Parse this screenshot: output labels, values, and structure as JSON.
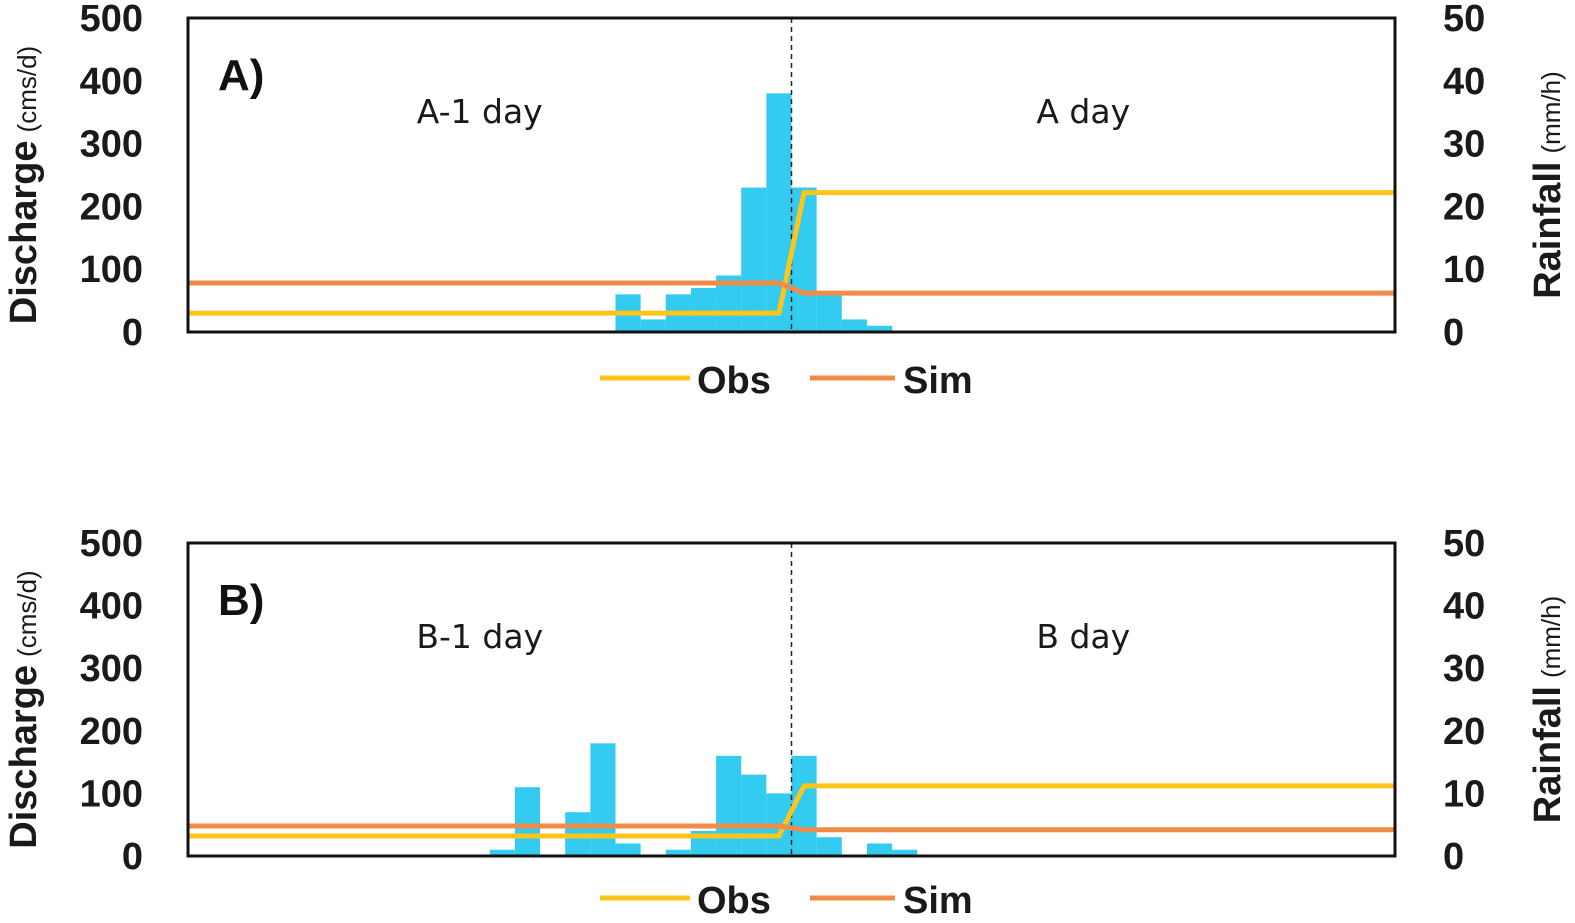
{
  "chart_data": [
    {
      "type": "bar+line",
      "panel_label": "A)",
      "left_axis": {
        "title": "Discharge",
        "unit": "(cms/d)",
        "ylim": [
          0,
          500
        ],
        "ticks": [
          "0",
          "100",
          "200",
          "300",
          "400",
          "500"
        ]
      },
      "right_axis": {
        "title": "Rainfall",
        "unit": "(mm/h)",
        "ylim": [
          0,
          50
        ],
        "ticks": [
          "0",
          "10",
          "20",
          "30",
          "40",
          "50"
        ]
      },
      "x_hours": [
        0,
        48
      ],
      "divider_hour": 24,
      "regions": [
        "A-1 day",
        "A day"
      ],
      "rainfall": {
        "name": "Rainfall",
        "color": "#33ccf0",
        "start_hours": [
          17,
          18,
          19,
          20,
          21,
          22,
          23,
          24,
          25,
          26,
          27
        ],
        "values": [
          6,
          2,
          6,
          7,
          9,
          23,
          38,
          23,
          6,
          2,
          1
        ]
      },
      "series": [
        {
          "name": "Obs",
          "color": "#ffc51a",
          "axis": "left",
          "x": [
            0,
            23.5,
            24.5,
            48
          ],
          "values": [
            30,
            30,
            222,
            222
          ]
        },
        {
          "name": "Sim",
          "color": "#f08c47",
          "axis": "left",
          "x": [
            0,
            23.5,
            24.5,
            48
          ],
          "values": [
            78,
            78,
            62,
            62
          ]
        }
      ],
      "legend": [
        "Obs",
        "Sim"
      ]
    },
    {
      "type": "bar+line",
      "panel_label": "B)",
      "left_axis": {
        "title": "Discharge",
        "unit": "(cms/d)",
        "ylim": [
          0,
          500
        ],
        "ticks": [
          "0",
          "100",
          "200",
          "300",
          "400",
          "500"
        ]
      },
      "right_axis": {
        "title": "Rainfall",
        "unit": "(mm/h)",
        "ylim": [
          0,
          50
        ],
        "ticks": [
          "0",
          "10",
          "20",
          "30",
          "40",
          "50"
        ]
      },
      "x_hours": [
        0,
        48
      ],
      "divider_hour": 24,
      "regions": [
        "B-1 day",
        "B day"
      ],
      "rainfall": {
        "name": "Rainfall",
        "color": "#33ccf0",
        "start_hours": [
          12,
          13,
          15,
          16,
          17,
          19,
          20,
          21,
          22,
          23,
          24,
          25,
          27,
          28
        ],
        "values": [
          1,
          11,
          7,
          18,
          2,
          1,
          4,
          16,
          13,
          10,
          16,
          3,
          2,
          1
        ]
      },
      "series": [
        {
          "name": "Obs",
          "color": "#ffc51a",
          "axis": "left",
          "x": [
            0,
            23.5,
            24.5,
            48
          ],
          "values": [
            32,
            32,
            112,
            112
          ]
        },
        {
          "name": "Sim",
          "color": "#f08c47",
          "axis": "left",
          "x": [
            0,
            23.5,
            24.5,
            48
          ],
          "values": [
            48,
            48,
            42,
            42
          ]
        }
      ],
      "legend": [
        "Obs",
        "Sim"
      ]
    }
  ]
}
